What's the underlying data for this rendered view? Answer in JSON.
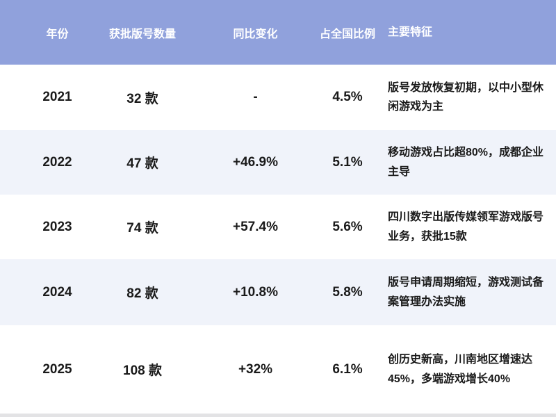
{
  "chart_data": {
    "type": "table",
    "columns": [
      "年份",
      "获批版号数量",
      "同比变化",
      "占全国比例",
      "主要特征"
    ],
    "rows": [
      {
        "year": "2021",
        "count": "32 款",
        "change": "-",
        "share": "4.5%",
        "feature": "版号发放恢复初期，以中小型休闲游戏为主"
      },
      {
        "year": "2022",
        "count": "47 款",
        "change": "+46.9%",
        "share": "5.1%",
        "feature": "移动游戏占比超80%，成都企业主导"
      },
      {
        "year": "2023",
        "count": "74 款",
        "change": "+57.4%",
        "share": "5.6%",
        "feature": "四川数字出版传媒领军游戏版号业务，获批15款"
      },
      {
        "year": "2024",
        "count": "82 款",
        "change": "+10.8%",
        "share": "5.8%",
        "feature": "版号申请周期缩短，游戏测试备案管理办法实施"
      },
      {
        "year": "2025",
        "count": "108 款",
        "change": "+32%",
        "share": "6.1%",
        "feature": "创历史新高，川南地区增速达45%，多端游戏增长40%"
      }
    ],
    "numeric": {
      "years": [
        2021,
        2022,
        2023,
        2024,
        2025
      ],
      "approved_license_counts": [
        32,
        47,
        74,
        82,
        108
      ],
      "yoy_change_pct": [
        null,
        46.9,
        57.4,
        10.8,
        32
      ],
      "national_share_pct": [
        4.5,
        5.1,
        5.6,
        5.8,
        6.1
      ]
    }
  },
  "colors": {
    "header_bg": "#90a1dc",
    "row_bg": "#ffffff",
    "row_alt_bg": "#f0f3fa",
    "header_text": "#ffffff",
    "body_text": "#1a1a1a",
    "bottom_strip": "#e3e3e5"
  }
}
